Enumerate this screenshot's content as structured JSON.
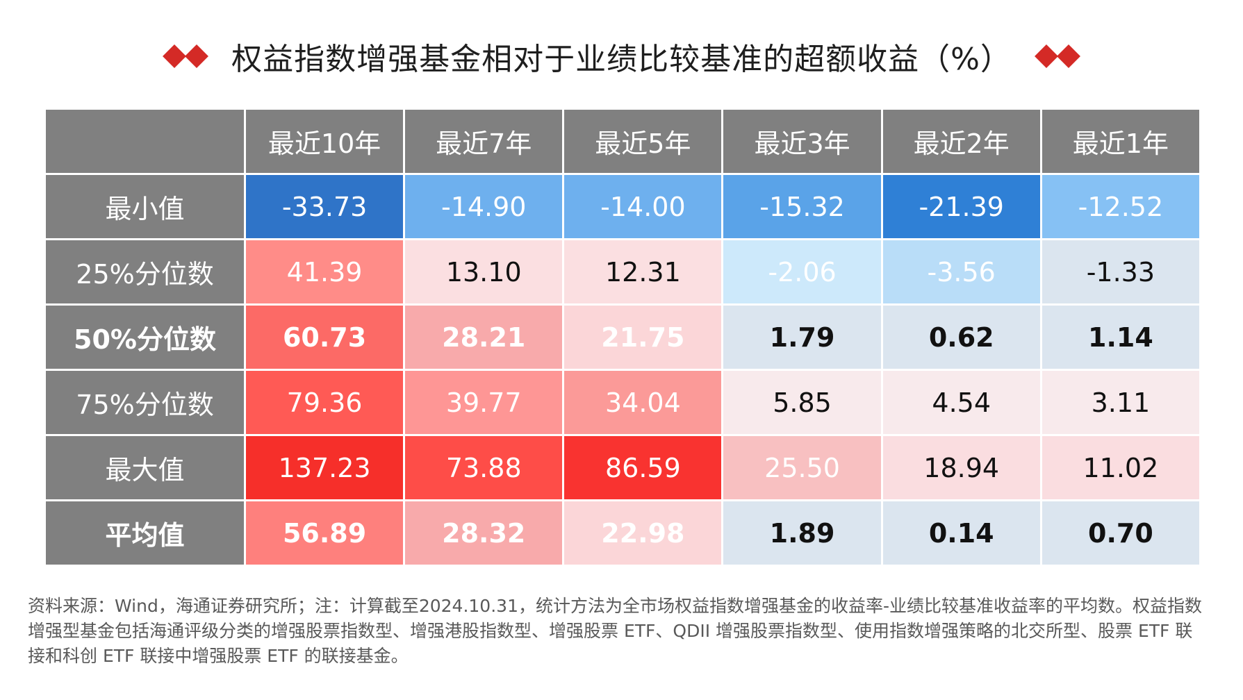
{
  "title": "权益指数增强基金相对于业绩比较基准的超额收益（%）",
  "source": "资料来源：Wind，海通证券研究所；注：计算截至2024.10.31，统计方法为全市场权益指数增强基金的收益率-业绩比较基准收益率的平均数。权益指数增强型基金包括海通评级分类的增强股票指数型、增强港股指数型、增强股票 ETF、QDII 增强股票指数型、使用指数增强策略的北交所型、股票 ETF 联接和科创 ETF 联接中增强股票 ETF 的联接基金。",
  "accent_color": "#d42a26",
  "header_color": "#808080",
  "chart_data": {
    "type": "table",
    "title": "权益指数增强基金相对于业绩比较基准的超额收益（%）",
    "columns": [
      "最近10年",
      "最近7年",
      "最近5年",
      "最近3年",
      "最近2年",
      "最近1年"
    ],
    "rows": [
      {
        "label": "最小值",
        "bold": false,
        "values": [
          "-33.73",
          "-14.90",
          "-14.00",
          "-15.32",
          "-21.39",
          "-12.52"
        ]
      },
      {
        "label": "25%分位数",
        "bold": false,
        "values": [
          "41.39",
          "13.10",
          "12.31",
          "-2.06",
          "-3.56",
          "-1.33"
        ]
      },
      {
        "label": "50%分位数",
        "bold": true,
        "values": [
          "60.73",
          "28.21",
          "21.75",
          "1.79",
          "0.62",
          "1.14"
        ]
      },
      {
        "label": "75%分位数",
        "bold": false,
        "values": [
          "79.36",
          "39.77",
          "34.04",
          "5.85",
          "4.54",
          "3.11"
        ]
      },
      {
        "label": "最大值",
        "bold": false,
        "values": [
          "137.23",
          "73.88",
          "86.59",
          "25.50",
          "18.94",
          "11.02"
        ]
      },
      {
        "label": "平均值",
        "bold": true,
        "values": [
          "56.89",
          "28.32",
          "22.98",
          "1.89",
          "0.14",
          "0.70"
        ]
      }
    ],
    "cell_colors": [
      [
        "#2f74c8",
        "#6eb0ee",
        "#6eb0ee",
        "#5aa3e8",
        "#2f80d6",
        "#86c1f4"
      ],
      [
        "#ff8c88",
        "#fbdfe1",
        "#fbdfe1",
        "#cde9fb",
        "#b9ddf8",
        "#dbe5ef"
      ],
      [
        "#fc6a66",
        "#f8aaab",
        "#fbd6d8",
        "#dbe5ef",
        "#dbe5ef",
        "#dbe5ef"
      ],
      [
        "#ff5a55",
        "#fe9695",
        "#fb9a98",
        "#f8eaec",
        "#f8eaec",
        "#f8eaec"
      ],
      [
        "#f62f2a",
        "#fe4d48",
        "#f93330",
        "#f8c0c1",
        "#fadde0",
        "#fadde0"
      ],
      [
        "#fe807d",
        "#f8aaab",
        "#fbd6d8",
        "#dbe5ef",
        "#dbe5ef",
        "#dbe5ef"
      ]
    ],
    "text_colors": [
      [
        "#ffffff",
        "#ffffff",
        "#ffffff",
        "#ffffff",
        "#ffffff",
        "#ffffff"
      ],
      [
        "#ffffff",
        "#111111",
        "#111111",
        "#ffffff",
        "#ffffff",
        "#111111"
      ],
      [
        "#ffffff",
        "#ffffff",
        "#ffffff",
        "#111111",
        "#111111",
        "#111111"
      ],
      [
        "#ffffff",
        "#ffffff",
        "#ffffff",
        "#111111",
        "#111111",
        "#111111"
      ],
      [
        "#ffffff",
        "#ffffff",
        "#ffffff",
        "#ffffff",
        "#111111",
        "#111111"
      ],
      [
        "#ffffff",
        "#ffffff",
        "#ffffff",
        "#111111",
        "#111111",
        "#111111"
      ]
    ]
  }
}
